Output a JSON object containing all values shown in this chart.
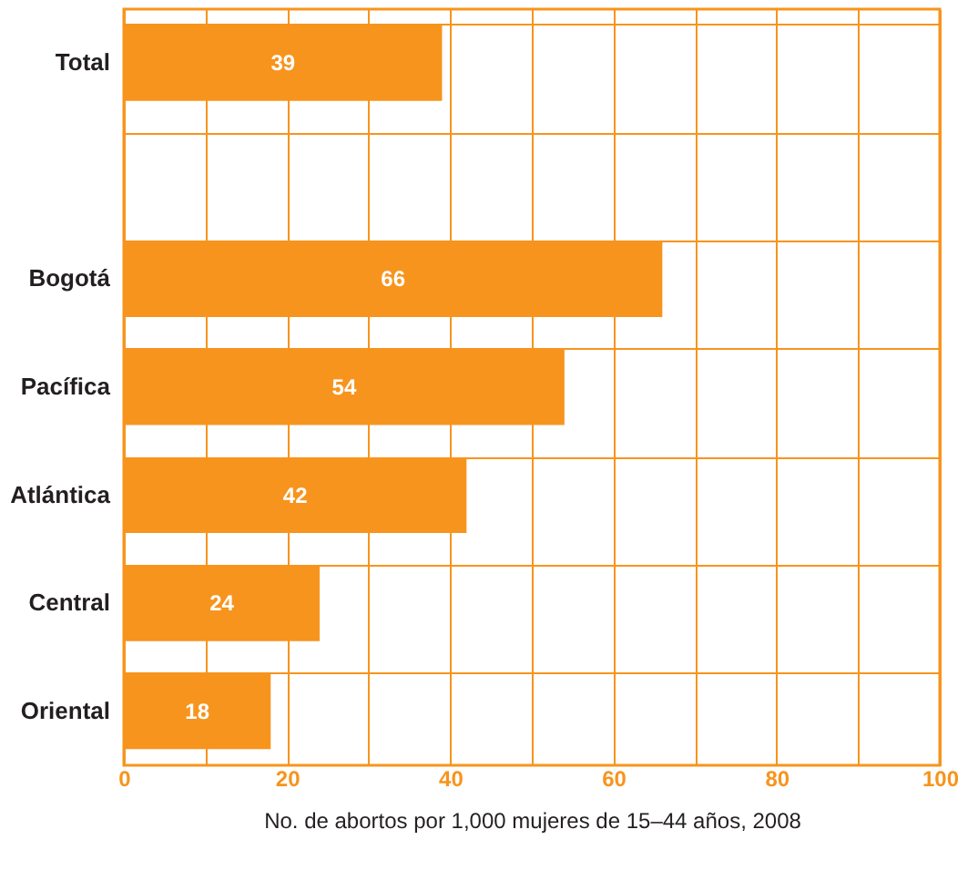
{
  "chart_data": {
    "type": "bar",
    "orientation": "horizontal",
    "xlabel": "No. de abortos por 1,000 mujeres de 15–44 años, 2008",
    "categories": [
      "Total",
      null,
      "Bogotá",
      "Pacífica",
      "Atlántica",
      "Central",
      "Oriental"
    ],
    "values": [
      39,
      null,
      66,
      54,
      42,
      24,
      18
    ],
    "color": "#f7941d",
    "xlim": [
      0,
      100
    ],
    "xticks": [
      0,
      {
        "value": 10,
        "label": null
      },
      20,
      {
        "value": 30,
        "label": null
      },
      40,
      {
        "value": 50,
        "label": null
      },
      60,
      {
        "value": 70,
        "label": null
      },
      80,
      {
        "value": 90,
        "label": null
      },
      100
    ],
    "grid": true,
    "data_labels": true
  }
}
